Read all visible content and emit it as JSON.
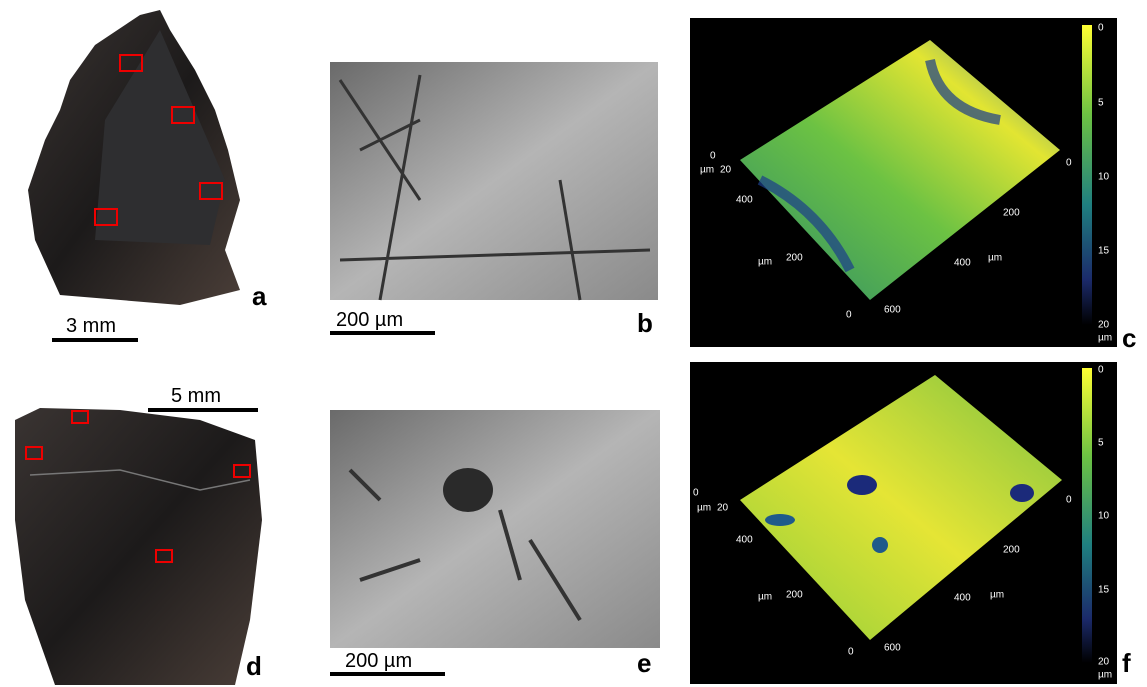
{
  "panels": [
    {
      "label": "a",
      "scale_bar": "3 mm"
    },
    {
      "label": "b",
      "scale_bar": "200 µm"
    },
    {
      "label": "c",
      "axis_labels": [
        "0",
        "µm",
        "20",
        "400",
        "µm",
        "200",
        "0",
        "600",
        "µm",
        "400",
        "200",
        "0"
      ],
      "colorbar_ticks": [
        "0",
        "5",
        "10",
        "15",
        "20"
      ],
      "colorbar_unit": "µm"
    },
    {
      "label": "d",
      "scale_bar": "5 mm"
    },
    {
      "label": "e",
      "scale_bar": "200 µm"
    },
    {
      "label": "f",
      "axis_labels": [
        "0",
        "µm",
        "20",
        "400",
        "µm",
        "200",
        "0",
        "600",
        "µm",
        "400",
        "200",
        "0"
      ],
      "colorbar_ticks": [
        "0",
        "5",
        "10",
        "15",
        "20"
      ],
      "colorbar_unit": "µm"
    }
  ]
}
